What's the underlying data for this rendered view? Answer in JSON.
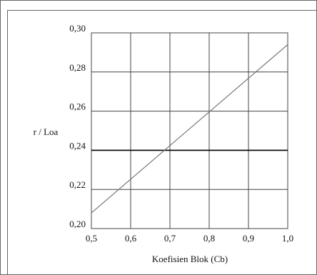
{
  "chart_data": {
    "type": "line",
    "title": "",
    "xlabel": "Koefisien Blok (Cb)",
    "ylabel": "r / Loa",
    "x_ticks": [
      "0,5",
      "0,6",
      "0,7",
      "0,8",
      "0,9",
      "1,0"
    ],
    "y_ticks": [
      "0,20",
      "0,22",
      "0,24",
      "0,26",
      "0,28",
      "0,30"
    ],
    "xlim": [
      0.5,
      1.0
    ],
    "ylim": [
      0.2,
      0.3
    ],
    "grid": true,
    "highlighted_gridline_y": 0.24,
    "series": [
      {
        "x": [
          0.5,
          1.0
        ],
        "y": [
          0.208,
          0.294
        ]
      }
    ],
    "colors": {
      "line": "#777777",
      "grid": "#444444",
      "highlight": "#000000",
      "frame": "#666666"
    }
  }
}
